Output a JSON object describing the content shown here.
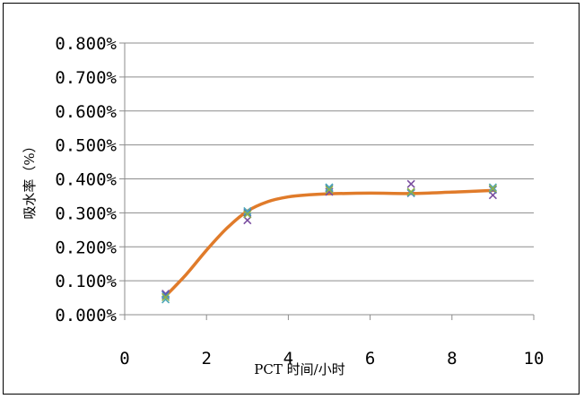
{
  "chart_data": {
    "type": "scatter",
    "xlabel": "PCT 时间/小时",
    "ylabel": "吸水率（%）",
    "xlim": [
      0,
      10
    ],
    "ylim": [
      0,
      0.8
    ],
    "x_ticks": [
      0,
      2,
      4,
      6,
      8,
      10
    ],
    "x_tick_labels": [
      "0",
      "2",
      "4",
      "6",
      "8",
      "10"
    ],
    "y_ticks": [
      0,
      0.1,
      0.2,
      0.3,
      0.4,
      0.5,
      0.6,
      0.7,
      0.8
    ],
    "y_tick_labels": [
      "0.000%",
      "0.100%",
      "0.200%",
      "0.300%",
      "0.400%",
      "0.500%",
      "0.600%",
      "0.700%",
      "0.800%"
    ],
    "grid": "horizontal",
    "legend": "none",
    "series": [
      {
        "marker": "x",
        "color": "#7b4fa0",
        "x": [
          1,
          3,
          5,
          7,
          9
        ],
        "y": [
          0.062,
          0.278,
          0.362,
          0.385,
          0.352
        ]
      },
      {
        "marker": "x",
        "color": "#4a6fbf",
        "x": [
          1,
          3,
          5,
          7,
          9
        ],
        "y": [
          0.058,
          0.3,
          0.372,
          0.358,
          0.368
        ]
      },
      {
        "marker": "x",
        "color": "#4fa8b8",
        "x": [
          1,
          3,
          5,
          7,
          9
        ],
        "y": [
          0.045,
          0.305,
          0.375,
          0.36,
          0.375
        ]
      },
      {
        "marker": "x",
        "color": "#8fb04a",
        "x": [
          1,
          3,
          5,
          7,
          9
        ],
        "y": [
          0.052,
          0.296,
          0.368,
          0.362,
          0.371
        ]
      }
    ],
    "trend_line": {
      "color": "#e07b2a",
      "x": [
        1,
        1.5,
        2,
        2.5,
        3,
        3.5,
        4,
        4.5,
        5,
        6,
        7,
        8,
        9
      ],
      "y": [
        0.055,
        0.118,
        0.19,
        0.255,
        0.305,
        0.333,
        0.347,
        0.353,
        0.356,
        0.358,
        0.357,
        0.361,
        0.366
      ]
    }
  }
}
